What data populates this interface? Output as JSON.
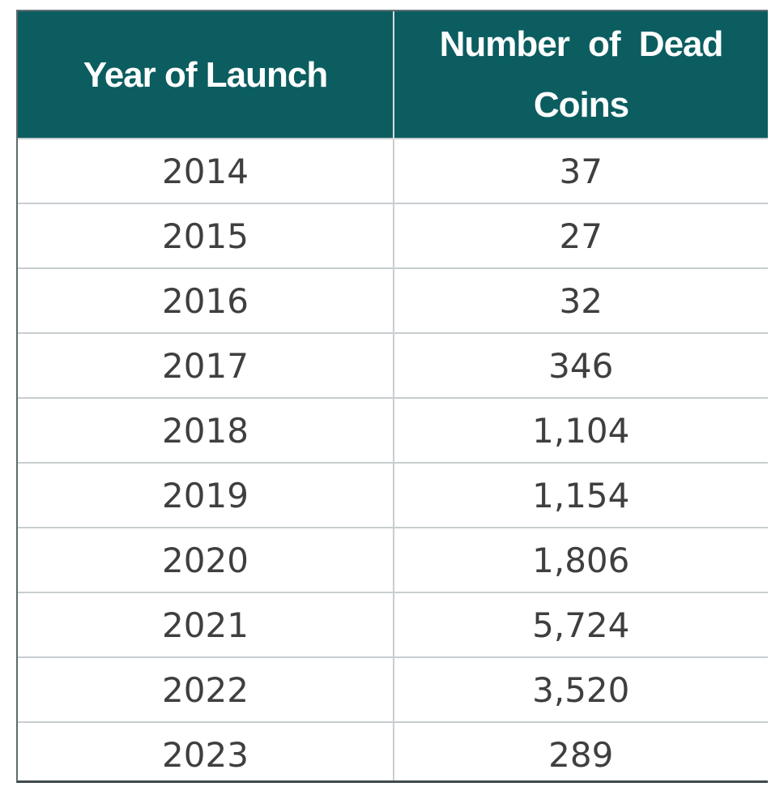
{
  "colors": {
    "header_bg": "#0b5d60",
    "header_text": "#ffffff",
    "cell_text": "#3f3f3f",
    "grid": "#c8cdd0"
  },
  "table": {
    "headers": [
      "Year of Launch",
      "Number of  Dead Coins"
    ],
    "rows": [
      [
        "2014",
        "37"
      ],
      [
        "2015",
        "27"
      ],
      [
        "2016",
        "32"
      ],
      [
        "2017",
        "346"
      ],
      [
        "2018",
        "1,104"
      ],
      [
        "2019",
        "1,154"
      ],
      [
        "2020",
        "1,806"
      ],
      [
        "2021",
        "5,724"
      ],
      [
        "2022",
        "3,520"
      ],
      [
        "2023",
        "289"
      ]
    ]
  },
  "chart_data": {
    "type": "table",
    "columns": [
      "Year of Launch",
      "Number of  Dead Coins"
    ],
    "x": [
      2014,
      2015,
      2016,
      2017,
      2018,
      2019,
      2020,
      2021,
      2022,
      2023
    ],
    "values": [
      37,
      27,
      32,
      346,
      1104,
      1154,
      1806,
      5724,
      3520,
      289
    ]
  }
}
